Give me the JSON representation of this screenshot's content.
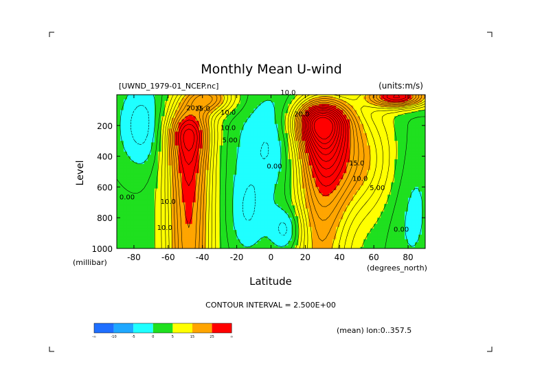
{
  "chart_data": {
    "type": "contour",
    "title": "Monthly Mean U-wind",
    "file_label": "[UWND_1979-01_NCEP.nc]",
    "units_label": "(units:m/s)",
    "xlabel": "Latitude",
    "ylabel": "Level",
    "x_unit_label": "(degrees_north)",
    "y_unit_label": "(millibar)",
    "xlim": [
      -90,
      90
    ],
    "ylim": [
      1000,
      0
    ],
    "x_ticks": [
      -80,
      -60,
      -40,
      -20,
      0,
      20,
      40,
      60,
      80
    ],
    "y_ticks": [
      200,
      400,
      600,
      800,
      1000
    ],
    "contour_interval_label": "CONTOUR INTERVAL = 2.500E+00",
    "mean_label": "(mean) lon:0..357.5",
    "legend": {
      "colors": [
        "#1f6fff",
        "#1fa8ff",
        "#1fffff",
        "#1fe01f",
        "#ffff00",
        "#ffa500",
        "#ff0000"
      ],
      "tick_labels": [
        "-∞",
        "-10",
        "-5",
        "0",
        "5",
        "15",
        "25",
        "∞"
      ]
    },
    "contour_labels": [
      {
        "text": "10.0",
        "lat": 10,
        "lev": 1
      },
      {
        "text": "20.0",
        "lat": -45,
        "lev": 100
      },
      {
        "text": "15.0",
        "lat": -40,
        "lev": 105
      },
      {
        "text": "10.0",
        "lat": -25,
        "lev": 130
      },
      {
        "text": "10.0",
        "lat": -25,
        "lev": 230
      },
      {
        "text": "5.00",
        "lat": -24,
        "lev": 310
      },
      {
        "text": "0.00",
        "lat": 2,
        "lev": 480
      },
      {
        "text": "0.00",
        "lat": -84,
        "lev": 680
      },
      {
        "text": "10.0",
        "lat": -60,
        "lev": 710
      },
      {
        "text": "10.0",
        "lat": -62,
        "lev": 880
      },
      {
        "text": "20.0",
        "lat": 18,
        "lev": 140
      },
      {
        "text": "15.0",
        "lat": 50,
        "lev": 460
      },
      {
        "text": "10.0",
        "lat": 52,
        "lev": 560
      },
      {
        "text": "5.00",
        "lat": 62,
        "lev": 620
      },
      {
        "text": "0.00",
        "lat": 76,
        "lev": 890
      }
    ],
    "field_description": "Zonal-mean zonal wind (m/s) vs latitude and pressure level; westerly maxima near 50S at 300 hPa (~30 m/s) and near 30N at 200 hPa (~40+ m/s)"
  }
}
